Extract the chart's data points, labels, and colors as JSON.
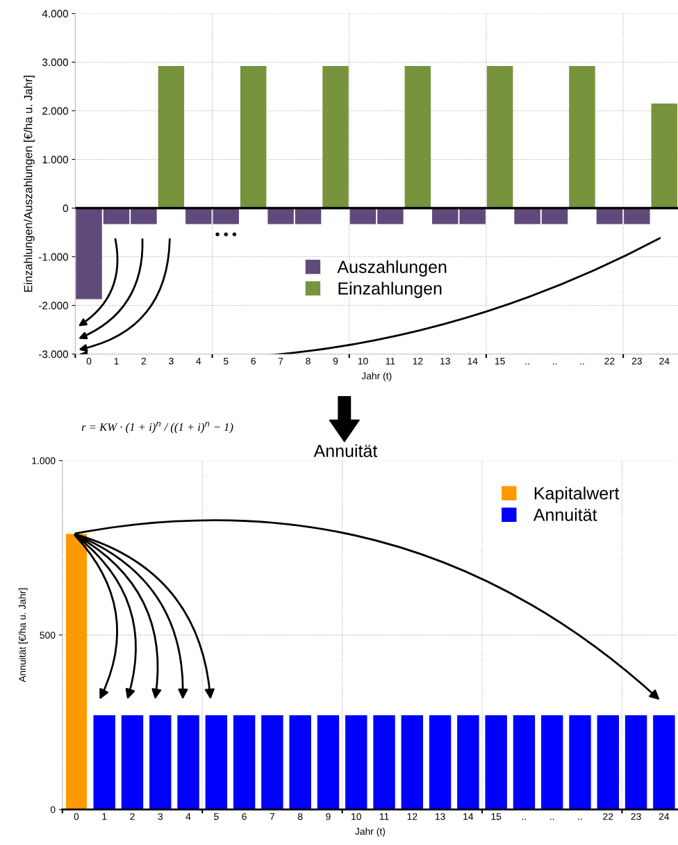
{
  "chart_data": [
    {
      "type": "bar",
      "ylabel": "Einzahlungen/Auszahlungen [€/ha u. Jahr]",
      "xlabel": "Jahr (t)",
      "categories": [
        "0",
        "1",
        "2",
        "3",
        "4",
        "5",
        "6",
        "7",
        "8",
        "9",
        "10",
        "11",
        "12",
        "13",
        "14",
        "15",
        "..",
        "..",
        "..",
        "22",
        "23",
        "24"
      ],
      "series": [
        {
          "name": "Auszahlungen",
          "color": "#604a7b",
          "values": [
            -1870,
            -330,
            -330,
            null,
            -330,
            -330,
            null,
            -330,
            -330,
            null,
            -330,
            -330,
            null,
            -330,
            -330,
            null,
            -330,
            -330,
            null,
            -330,
            -330,
            null
          ]
        },
        {
          "name": "Einzahlungen",
          "color": "#77933c",
          "values": [
            null,
            null,
            null,
            2920,
            null,
            null,
            2920,
            null,
            null,
            2920,
            null,
            null,
            2920,
            null,
            null,
            2920,
            null,
            null,
            2920,
            null,
            null,
            2150
          ]
        }
      ],
      "ylim": [
        -3000,
        4000
      ],
      "yticks": [
        {
          "value": -3000,
          "label": "-3.000"
        },
        {
          "value": -2000,
          "label": "-2.000"
        },
        {
          "value": -1000,
          "label": "-1.000"
        },
        0,
        {
          "value": 1000,
          "label": "1.000"
        },
        {
          "value": 2000,
          "label": "2.000"
        },
        {
          "value": 3000,
          "label": "3.000"
        },
        {
          "value": 4000,
          "label": "4.000"
        }
      ],
      "ref_lines": [
        {
          "axis": "y",
          "value": 0,
          "color": "#000000"
        }
      ],
      "annotations": [
        "• • •"
      ],
      "grid": true,
      "legend": "center"
    },
    {
      "type": "bar",
      "title": "Annuität",
      "ylabel": "Annuität [€/ha u. Jahr]",
      "xlabel": "Jahr (t)",
      "categories": [
        "0",
        "1",
        "2",
        "3",
        "4",
        "5",
        "6",
        "7",
        "8",
        "9",
        "10",
        "11",
        "12",
        "13",
        "14",
        "15",
        "..",
        "..",
        "..",
        "22",
        "23",
        "24"
      ],
      "series": [
        {
          "name": "Kapitalwert",
          "color": "#ff9900",
          "values": [
            790,
            null,
            null,
            null,
            null,
            null,
            null,
            null,
            null,
            null,
            null,
            null,
            null,
            null,
            null,
            null,
            null,
            null,
            null,
            null,
            null,
            null
          ]
        },
        {
          "name": "Annuität",
          "color": "#0000ff",
          "values": [
            null,
            270,
            270,
            270,
            270,
            270,
            270,
            270,
            270,
            270,
            270,
            270,
            270,
            270,
            270,
            270,
            270,
            270,
            270,
            270,
            270,
            270
          ]
        }
      ],
      "ylim": [
        0,
        1000
      ],
      "yticks": [
        0,
        500,
        {
          "value": 1000,
          "label": "1.000"
        }
      ],
      "annotations": [
        "r = KW · (1 + i)$^{n}$ / ((1 + i)$^{n}$ − 1)"
      ],
      "grid": true,
      "legend": "top right"
    }
  ]
}
